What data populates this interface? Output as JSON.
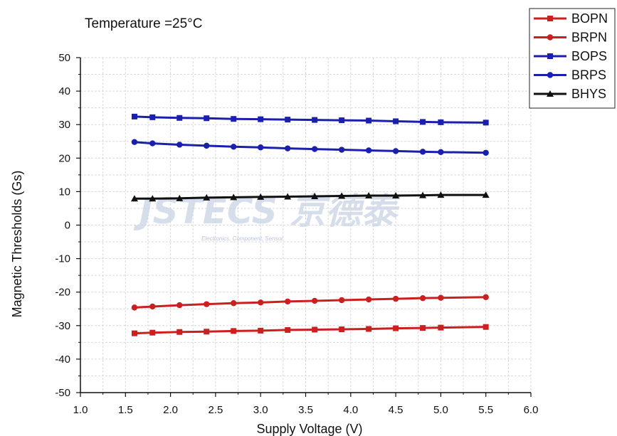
{
  "chart_data": {
    "type": "line",
    "title": "Temperature =25°C",
    "xlabel": "Supply Voltage (V)",
    "ylabel": "Magnetic Thresholds (Gs)",
    "xlim": [
      1.0,
      6.0
    ],
    "ylim": [
      -50,
      50
    ],
    "x_ticks": [
      "1.0",
      "1.5",
      "2.0",
      "2.5",
      "3.0",
      "3.5",
      "4.0",
      "4.5",
      "5.0",
      "5.5",
      "6.0"
    ],
    "y_ticks": [
      "50",
      "40",
      "30",
      "20",
      "10",
      "0",
      "-10",
      "-20",
      "-30",
      "-40",
      "-50"
    ],
    "grid": true,
    "legend_position": "top-right",
    "x": [
      1.6,
      1.8,
      2.1,
      2.4,
      2.7,
      3.0,
      3.3,
      3.6,
      3.9,
      4.2,
      4.5,
      4.8,
      5.0,
      5.5
    ],
    "series": [
      {
        "name": "BOPN",
        "color": "#cc1f1f",
        "marker": "square",
        "values": [
          -32.3,
          -32.1,
          -31.9,
          -31.8,
          -31.6,
          -31.5,
          -31.3,
          -31.2,
          -31.1,
          -31.0,
          -30.8,
          -30.7,
          -30.6,
          -30.4
        ]
      },
      {
        "name": "BRPN",
        "color": "#cc1f1f",
        "marker": "circle",
        "values": [
          -24.6,
          -24.3,
          -23.9,
          -23.6,
          -23.3,
          -23.1,
          -22.8,
          -22.6,
          -22.4,
          -22.2,
          -22.0,
          -21.8,
          -21.7,
          -21.5
        ]
      },
      {
        "name": "BOPS",
        "color": "#1a1fae",
        "marker": "square",
        "values": [
          32.4,
          32.2,
          32.0,
          31.9,
          31.7,
          31.6,
          31.5,
          31.4,
          31.3,
          31.2,
          31.0,
          30.8,
          30.7,
          30.6
        ]
      },
      {
        "name": "BRPS",
        "color": "#1a1fae",
        "marker": "circle",
        "values": [
          24.8,
          24.4,
          24.0,
          23.7,
          23.4,
          23.2,
          22.9,
          22.7,
          22.5,
          22.3,
          22.1,
          21.9,
          21.8,
          21.6
        ]
      },
      {
        "name": "BHYS",
        "color": "#111111",
        "marker": "triangle",
        "values": [
          7.9,
          7.9,
          8.0,
          8.2,
          8.3,
          8.4,
          8.5,
          8.6,
          8.7,
          8.8,
          8.8,
          8.9,
          9.0,
          9.0
        ]
      }
    ]
  },
  "watermark": {
    "text": "JSTECS 京德泰",
    "subtext": "Electronics, Component, Sensor",
    "color": "#c9d3e6"
  }
}
